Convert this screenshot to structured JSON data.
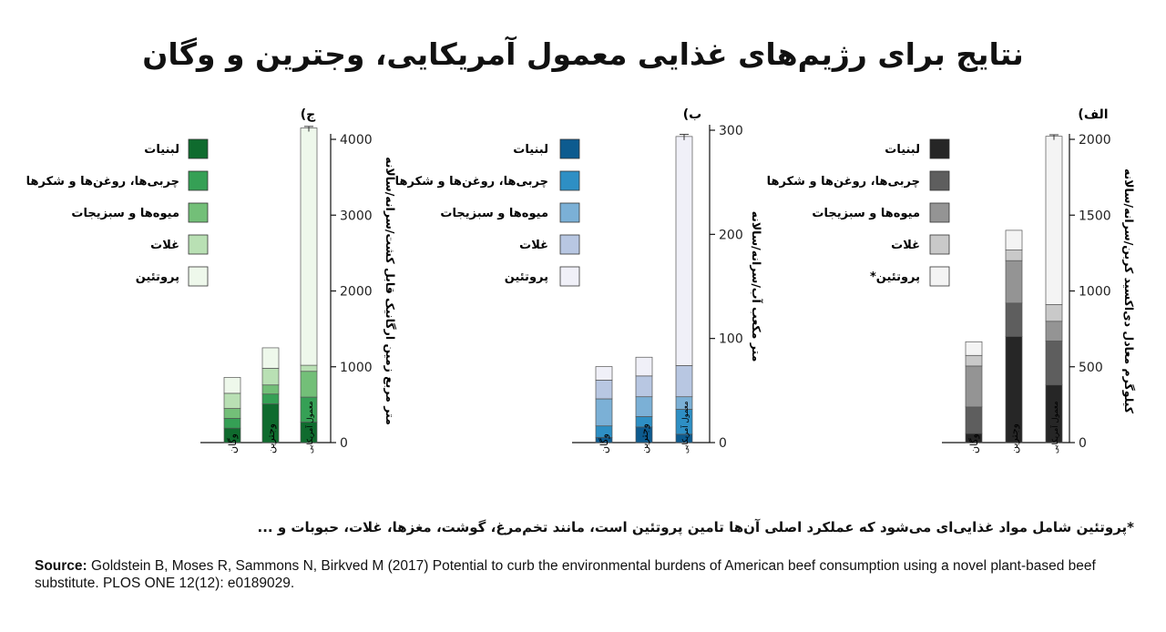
{
  "title": "نتایج برای رژیم‌های غذایی معمول آمریکایی، وجترین و وگان",
  "footnote": "*پروتئین شامل مواد غذایی‌ای می‌شود که عملکرد اصلی آن‌ها تامین پروتئین است، مانند تخم‌مرغ، گوشت، مغزها، غلات، حبوبات و ...",
  "source": {
    "label": "Source:",
    "text": " Goldstein B, Moses R, Sammons N, Birkved M (2017) Potential to curb the environmental burdens of American beef consumption using a novel plant-based beef substitute. PLOS ONE 12(12): e0189029."
  },
  "chart_data": [
    {
      "type": "bar",
      "stacked": true,
      "panel_label": "الف)",
      "categories": [
        "وگان",
        "وجترین",
        "معمول آمریکایی"
      ],
      "ylabel": "کیلوگرم معادل دی‌اکسید کربن/سرانه/سالانه",
      "ylim": [
        0,
        2000
      ],
      "yticks": [
        0,
        500,
        1000,
        1500,
        2000
      ],
      "error_bar_top": [
        null,
        null,
        2030
      ],
      "series": [
        {
          "name": "لبنیات",
          "color": "#262626",
          "values": [
            60,
            700,
            380
          ]
        },
        {
          "name": "چربی‌ها، روغن‌ها و شکرها",
          "color": "#5e5e5e",
          "values": [
            175,
            220,
            290
          ]
        },
        {
          "name": "میوه‌ها و سبزیجات",
          "color": "#949494",
          "values": [
            270,
            280,
            130
          ]
        },
        {
          "name": "غلات",
          "color": "#c9c9c9",
          "values": [
            70,
            70,
            110
          ]
        },
        {
          "name": "پروتئین*",
          "color": "#f4f4f4",
          "values": [
            90,
            130,
            1110
          ]
        }
      ]
    },
    {
      "type": "bar",
      "stacked": true,
      "panel_label": "ب)",
      "categories": [
        "وگان",
        "وجترین",
        "معمول آمریکایی"
      ],
      "ylabel": "متر مکعب آب/سرانه/سالانه",
      "ylim": [
        0,
        300
      ],
      "yticks": [
        0,
        100,
        200,
        300
      ],
      "error_bar_top": [
        null,
        null,
        296
      ],
      "series": [
        {
          "name": "لبنیات",
          "color": "#0d5b8f",
          "values": [
            5,
            15,
            8
          ]
        },
        {
          "name": "چربی‌ها، روغن‌ها و شکرها",
          "color": "#2e8fc4",
          "values": [
            11,
            10,
            24
          ]
        },
        {
          "name": "میوه‌ها و سبزیجات",
          "color": "#7bb0d6",
          "values": [
            26,
            19,
            12
          ]
        },
        {
          "name": "غلات",
          "color": "#b8c7e2",
          "values": [
            18,
            20,
            30
          ]
        },
        {
          "name": "پروتئین",
          "color": "#f0f0f8",
          "values": [
            13,
            18,
            220
          ]
        }
      ]
    },
    {
      "type": "bar",
      "stacked": true,
      "panel_label": "ج)",
      "categories": [
        "وگان",
        "وجترین",
        "معمول آمریکایی"
      ],
      "ylabel": "متر مربع زمین ارگانیک قابل کشت/سرانه/سالانه",
      "ylim": [
        0,
        4000
      ],
      "yticks": [
        0,
        1000,
        2000,
        3000,
        4000
      ],
      "error_bar_top": [
        null,
        null,
        4170
      ],
      "series": [
        {
          "name": "لبنیات",
          "color": "#0f6b2e",
          "values": [
            190,
            510,
            270
          ]
        },
        {
          "name": "چربی‌ها، روغن‌ها و شکرها",
          "color": "#35a055",
          "values": [
            130,
            130,
            330
          ]
        },
        {
          "name": "میوه‌ها و سبزیجات",
          "color": "#73bf78",
          "values": [
            130,
            120,
            340
          ]
        },
        {
          "name": "غلات",
          "color": "#b9e0b4",
          "values": [
            200,
            220,
            80
          ]
        },
        {
          "name": "پروتئین",
          "color": "#eef8eb",
          "values": [
            210,
            270,
            3130
          ]
        }
      ]
    }
  ]
}
